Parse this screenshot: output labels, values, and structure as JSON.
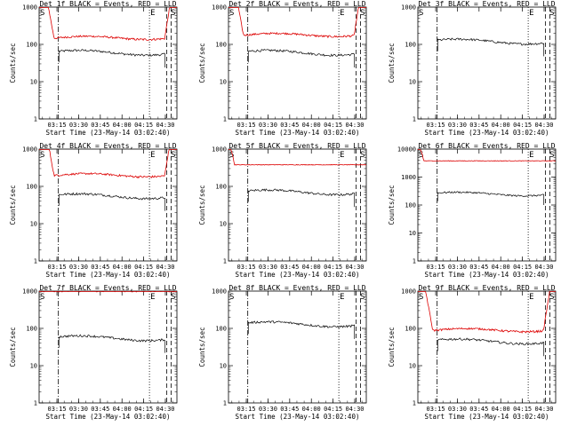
{
  "panels": [
    {
      "title": "Det 1f BLACK = Events, RED = LLD",
      "ymax_label": "1000",
      "red": "high-decay"
    },
    {
      "title": "Det 2f BLACK = Events, RED = LLD",
      "ymax_label": "1000",
      "red": "high-decay"
    },
    {
      "title": "Det 3f BLACK = Events, RED = LLD",
      "ymax_label": "1000",
      "red": "none"
    },
    {
      "title": "Det 4f BLACK = Events, RED = LLD",
      "ymax_label": "1000",
      "red": "high-decay"
    },
    {
      "title": "Det 5f BLACK = Events, RED = LLD",
      "ymax_label": "1000",
      "red": "flat-high"
    },
    {
      "title": "Det 6f BLACK = Events, RED = LLD",
      "ymax_label": "10000",
      "red": "flat-high"
    },
    {
      "title": "Det 7f BLACK = Events, RED = LLD",
      "ymax_label": "1000",
      "red": "top"
    },
    {
      "title": "Det 8f BLACK = Events, RED = LLD",
      "ymax_label": "1000",
      "red": "none"
    },
    {
      "title": "Det 9f BLACK = Events, RED = LLD",
      "ymax_label": "1000",
      "red": "high-decay"
    }
  ],
  "ylabel": "Counts/sec",
  "xlabel": "Start Time (23-May-14 03:02:40)",
  "xticks": [
    "03:15",
    "03:30",
    "03:45",
    "04:00",
    "04:15",
    "04:30"
  ],
  "markers": {
    "start": "S",
    "end": "E"
  },
  "colors": {
    "events": "#000000",
    "lld": "#dd0000"
  },
  "chart_data": {
    "type": "line",
    "x_range": [
      "03:02:40",
      "04:38:00"
    ],
    "y_scale": "log",
    "vlines": {
      "dash_dot": "03:16",
      "dotted": "04:19",
      "dashed": [
        "04:31",
        "04:34"
      ]
    },
    "events_counts_per_sec": {
      "Det 1f": 60,
      "Det 2f": 60,
      "Det 3f": 120,
      "Det 4f": 55,
      "Det 5f": 70,
      "Det 6f": 250,
      "Det 7f": 55,
      "Det 8f": 130,
      "Det 9f": 45
    },
    "lld_counts_per_sec": {
      "Det 1f": 150,
      "Det 2f": 180,
      "Det 4f": 200,
      "Det 5f": 380,
      "Det 6f": 3800,
      "Det 7f": 1000,
      "Det 9f": 90
    }
  }
}
